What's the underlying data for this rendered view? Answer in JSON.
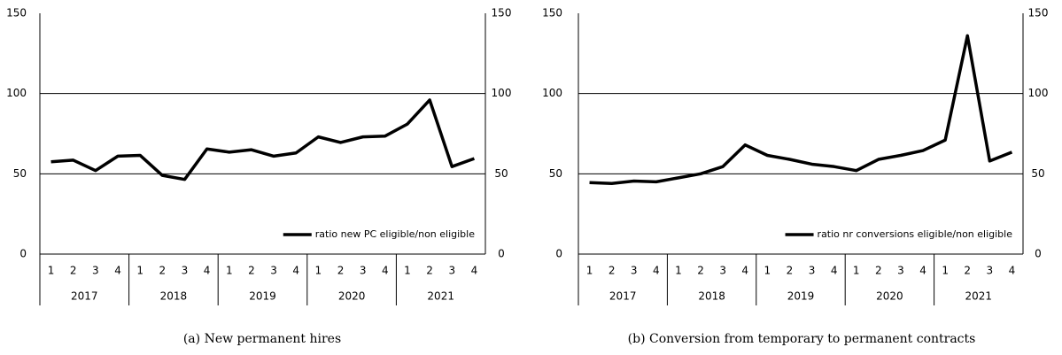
{
  "chart_data": [
    {
      "type": "line",
      "caption": "(a) New permanent hires",
      "categories": [
        "1",
        "2",
        "3",
        "4",
        "1",
        "2",
        "3",
        "4",
        "1",
        "2",
        "3",
        "4",
        "1",
        "2",
        "3",
        "4",
        "1",
        "2",
        "3",
        "4"
      ],
      "groups": [
        "2017",
        "2018",
        "2019",
        "2020",
        "2021"
      ],
      "series": [
        {
          "name": "ratio new PC eligible/non eligible",
          "color": "#000000",
          "values": [
            57.5,
            58.5,
            52,
            61,
            61.5,
            49,
            46.5,
            65.5,
            63.5,
            65,
            61,
            63,
            73,
            69.5,
            73,
            73.5,
            81,
            96,
            54.5,
            59.5
          ]
        }
      ],
      "ylim": [
        0,
        150
      ],
      "yticks": [
        0,
        50,
        100,
        150
      ],
      "y2lim": [
        0,
        150
      ],
      "y2ticks": [
        0,
        50,
        100,
        150
      ],
      "grid": true,
      "legend": "lower right"
    },
    {
      "type": "line",
      "caption": "(b) Conversion from temporary to permanent contracts",
      "categories": [
        "1",
        "2",
        "3",
        "4",
        "1",
        "2",
        "3",
        "4",
        "1",
        "2",
        "3",
        "4",
        "1",
        "2",
        "3",
        "4",
        "1",
        "2",
        "3",
        "4"
      ],
      "groups": [
        "2017",
        "2018",
        "2019",
        "2020",
        "2021"
      ],
      "series": [
        {
          "name": "ratio nr conversions eligible/non eligible",
          "color": "#000000",
          "values": [
            44.5,
            44,
            45.5,
            45,
            47.5,
            50,
            54.5,
            68,
            61.5,
            59,
            56,
            54.5,
            52,
            59,
            61.5,
            64.5,
            71,
            136,
            58,
            63.5
          ]
        }
      ],
      "ylim": [
        0,
        150
      ],
      "yticks": [
        0,
        50,
        100,
        150
      ],
      "y2lim": [
        0,
        150
      ],
      "y2ticks": [
        0,
        50,
        100,
        150
      ],
      "grid": true,
      "legend": "lower right"
    }
  ]
}
